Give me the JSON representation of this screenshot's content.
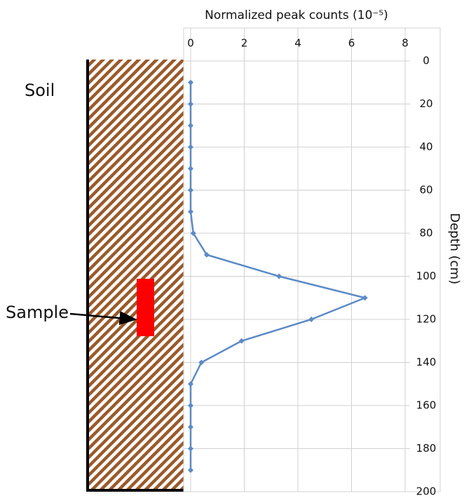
{
  "chart_data": {
    "type": "line",
    "title": "Normalized peak counts (10⁻⁵)",
    "y_label": "Depth (cm)",
    "annotations": [
      "Soil",
      "Sample"
    ],
    "depth": [
      10,
      20,
      30,
      40,
      50,
      60,
      70,
      80,
      90,
      100,
      110,
      120,
      130,
      140,
      150,
      160,
      170,
      180,
      190
    ],
    "values": [
      0,
      0,
      0,
      0,
      0,
      0,
      0,
      0.1,
      0.6,
      3.3,
      6.5,
      4.5,
      1.9,
      0.4,
      0,
      0,
      0,
      0,
      0
    ],
    "color": "#5b8ac6",
    "xlim": [
      0,
      8
    ],
    "xticks": [
      0,
      2,
      4,
      6,
      8
    ],
    "ylim": [
      0,
      200
    ],
    "yticks": [
      0,
      20,
      40,
      60,
      80,
      100,
      120,
      140,
      160,
      180,
      200
    ],
    "y_reversed": true,
    "grid": true
  }
}
